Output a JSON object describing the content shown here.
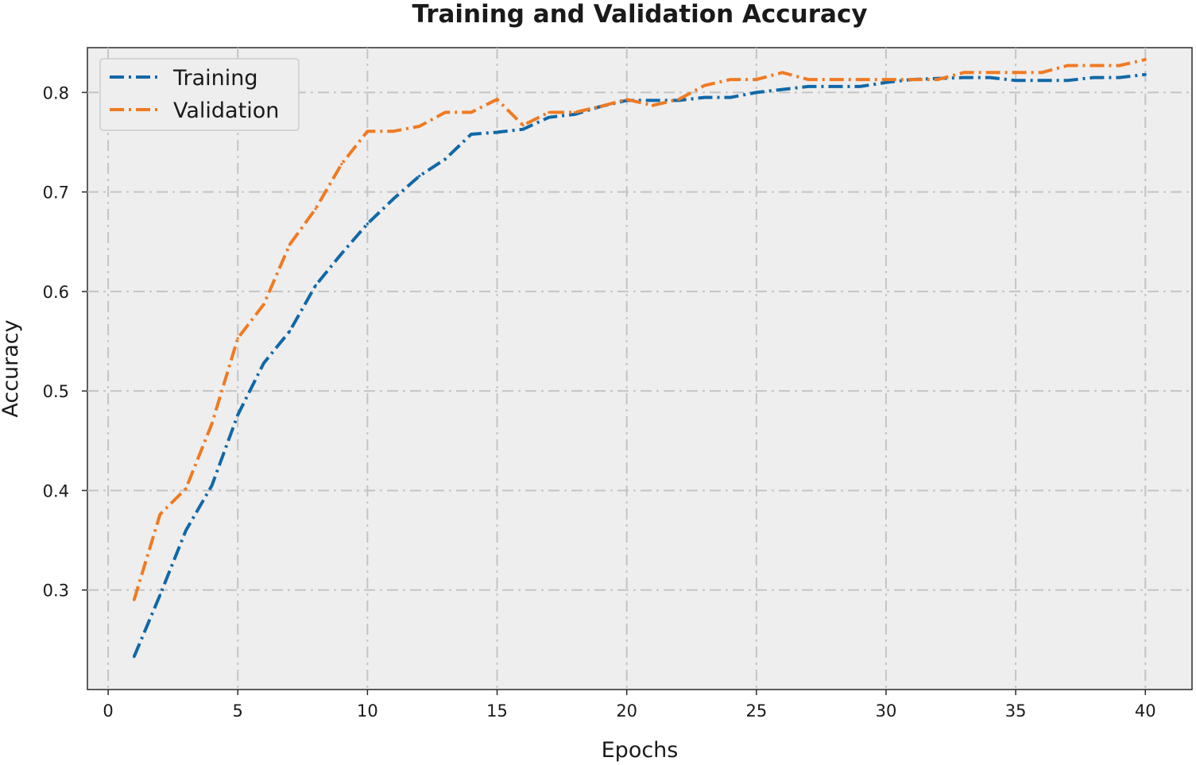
{
  "chart_data": {
    "type": "line",
    "title": "Training and Validation Accuracy",
    "xlabel": "Epochs",
    "ylabel": "Accuracy",
    "xlim": [
      -0.8,
      41.8
    ],
    "ylim": [
      0.2,
      0.845
    ],
    "xticks": [
      0,
      5,
      10,
      15,
      20,
      25,
      30,
      35,
      40
    ],
    "yticks": [
      0.3,
      0.4,
      0.5,
      0.6,
      0.7,
      0.8
    ],
    "xtick_labels": [
      "0",
      "5",
      "10",
      "15",
      "20",
      "25",
      "30",
      "35",
      "40"
    ],
    "ytick_labels": [
      "0.3",
      "0.4",
      "0.5",
      "0.6",
      "0.7",
      "0.8"
    ],
    "grid": true,
    "legend_position": "top-left",
    "x": [
      1,
      2,
      3,
      4,
      5,
      6,
      7,
      8,
      9,
      10,
      11,
      12,
      13,
      14,
      15,
      16,
      17,
      18,
      19,
      20,
      21,
      22,
      23,
      24,
      25,
      26,
      27,
      28,
      29,
      30,
      31,
      32,
      33,
      34,
      35,
      36,
      37,
      38,
      39,
      40
    ],
    "series": [
      {
        "name": "Training",
        "color": "#1068a8",
        "values": [
          0.233,
          0.295,
          0.36,
          0.405,
          0.476,
          0.528,
          0.56,
          0.606,
          0.638,
          0.668,
          0.693,
          0.716,
          0.733,
          0.758,
          0.76,
          0.763,
          0.775,
          0.778,
          0.786,
          0.792,
          0.792,
          0.792,
          0.795,
          0.795,
          0.8,
          0.803,
          0.806,
          0.806,
          0.806,
          0.81,
          0.813,
          0.814,
          0.815,
          0.815,
          0.812,
          0.812,
          0.812,
          0.815,
          0.815,
          0.818
        ]
      },
      {
        "name": "Validation",
        "color": "#f07a22",
        "values": [
          0.29,
          0.376,
          0.402,
          0.467,
          0.553,
          0.587,
          0.647,
          0.683,
          0.728,
          0.761,
          0.761,
          0.766,
          0.78,
          0.78,
          0.793,
          0.767,
          0.78,
          0.78,
          0.786,
          0.793,
          0.787,
          0.793,
          0.807,
          0.813,
          0.813,
          0.82,
          0.813,
          0.813,
          0.813,
          0.813,
          0.813,
          0.813,
          0.82,
          0.82,
          0.82,
          0.82,
          0.827,
          0.827,
          0.827,
          0.833
        ]
      }
    ]
  }
}
